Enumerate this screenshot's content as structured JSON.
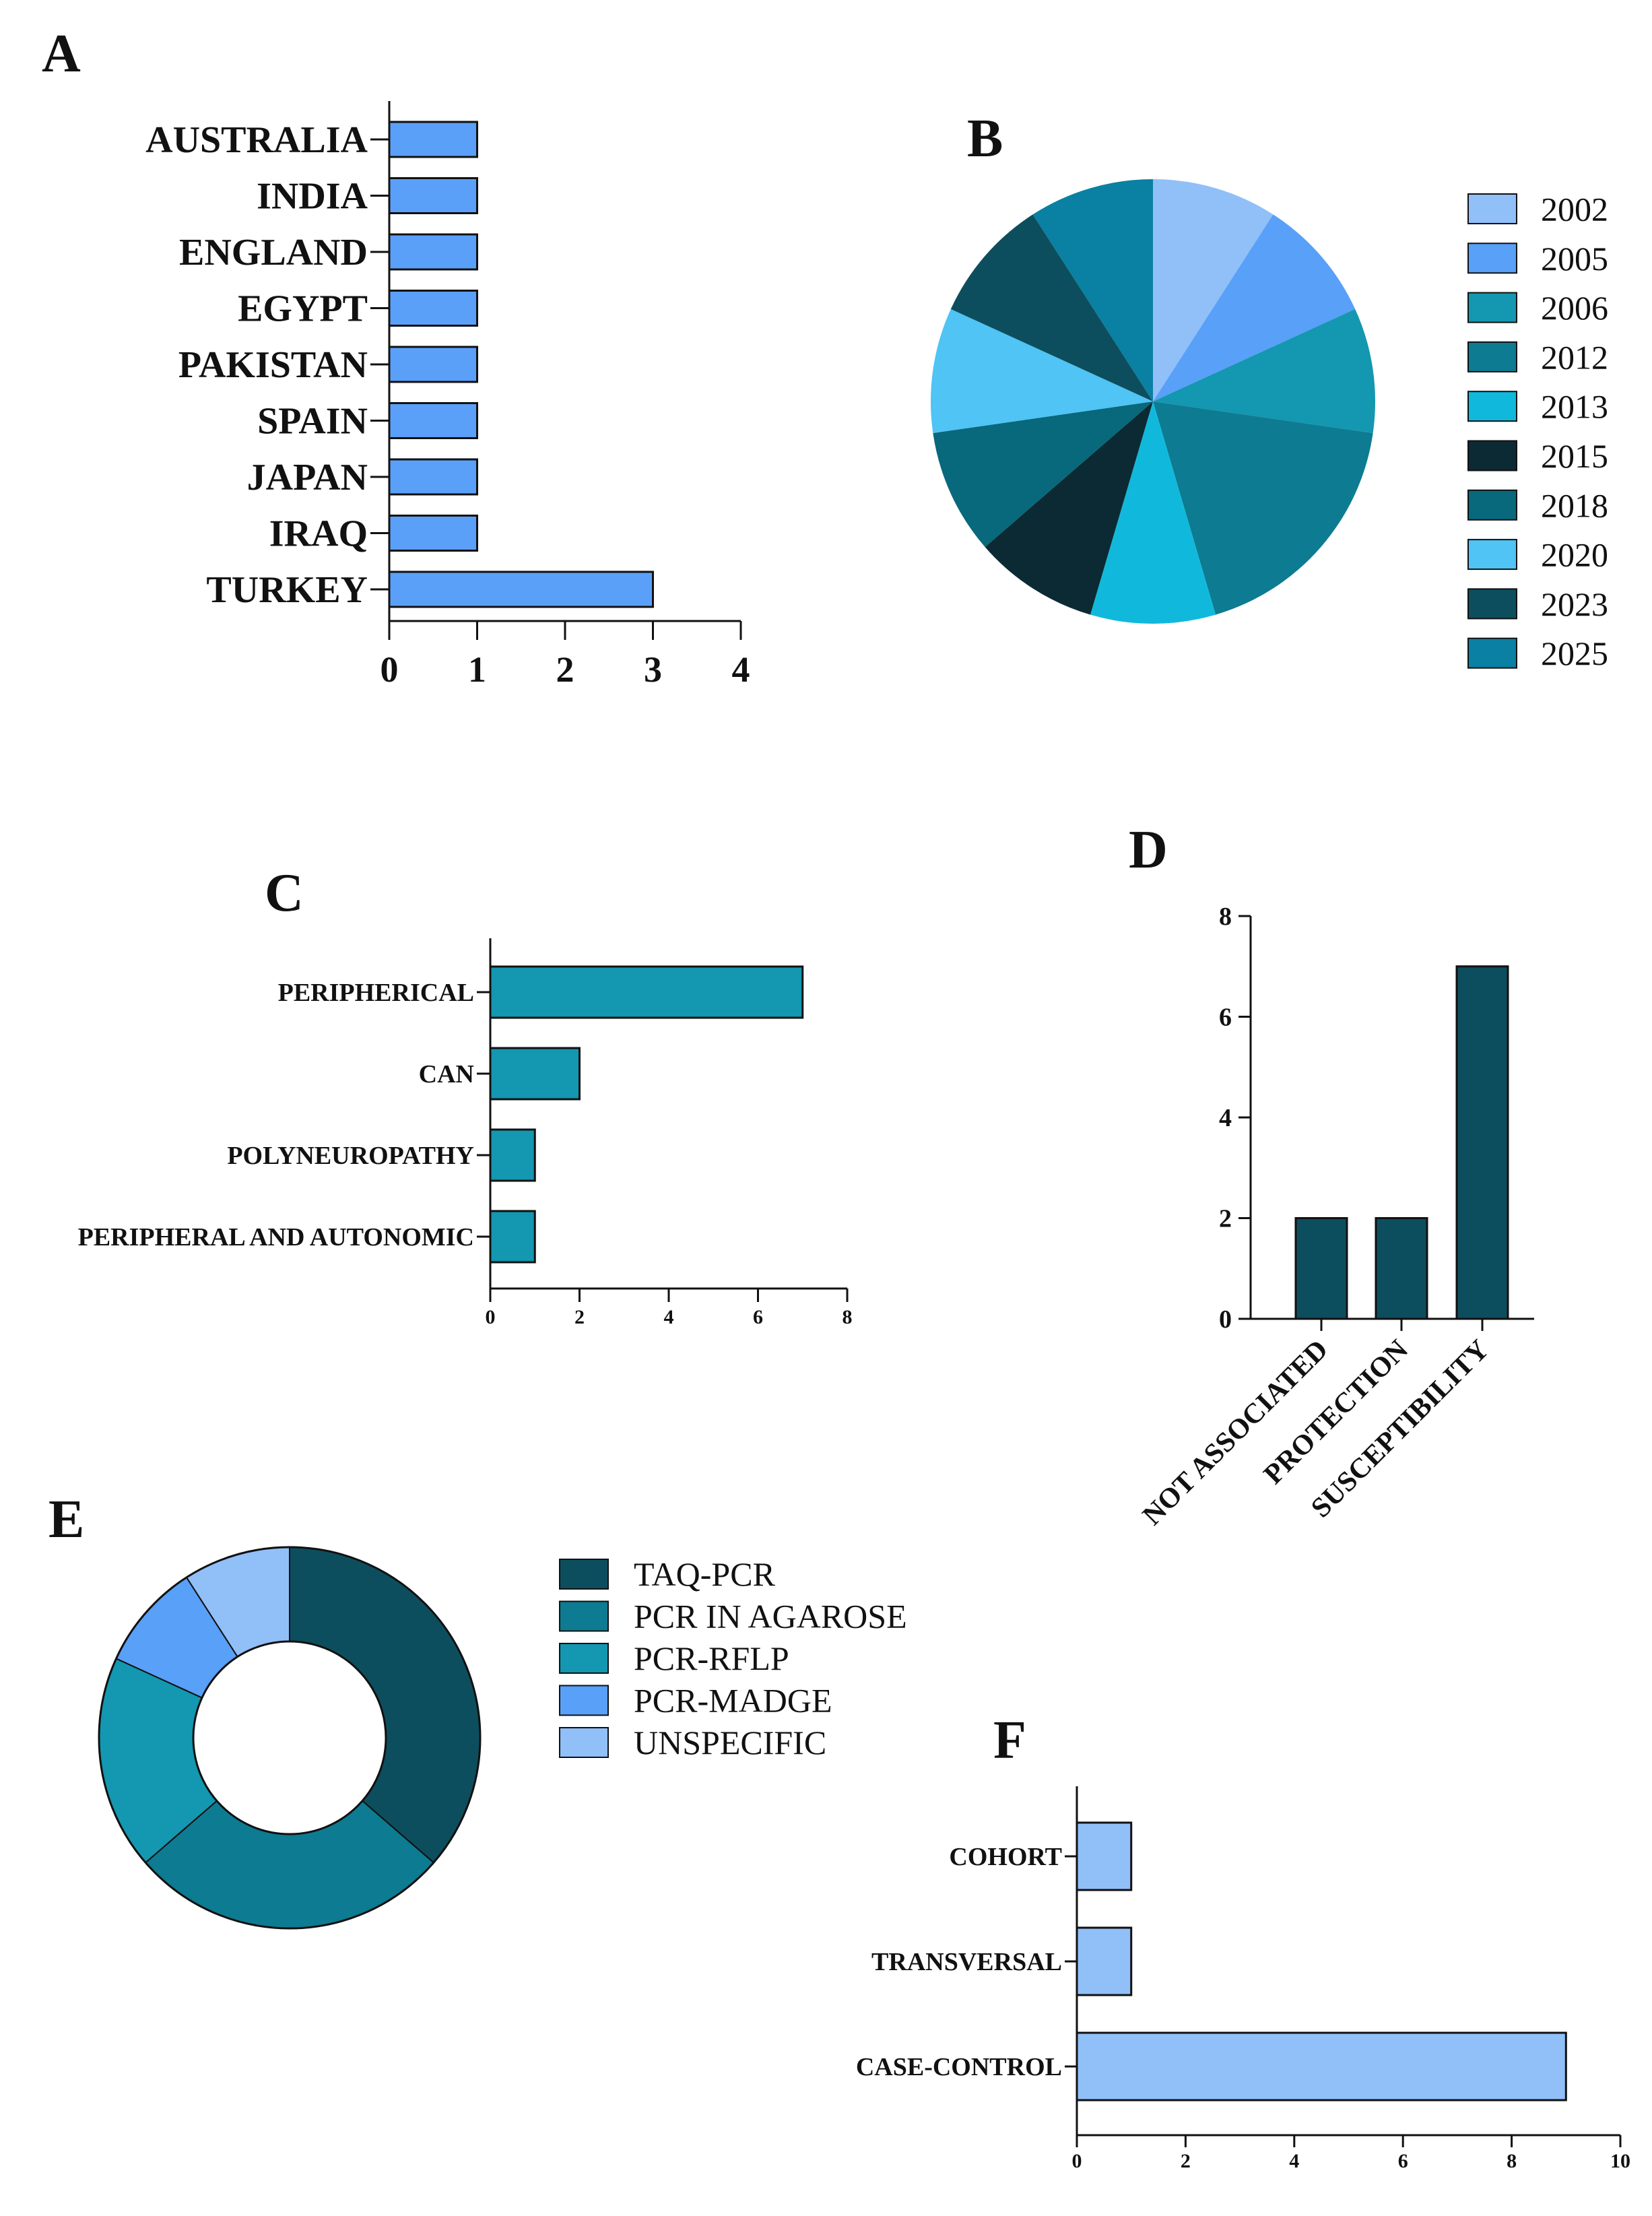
{
  "chart_data": [
    {
      "panel": "A",
      "type": "bar",
      "orientation": "horizontal",
      "categories": [
        "AUSTRALIA",
        "INDIA",
        "ENGLAND",
        "EGYPT",
        "PAKISTAN",
        "SPAIN",
        "JAPAN",
        "IRAQ",
        "TURKEY"
      ],
      "values": [
        1,
        1,
        1,
        1,
        1,
        1,
        1,
        1,
        3
      ],
      "xlim": [
        0,
        4
      ],
      "xticks": [
        0,
        1,
        2,
        3,
        4
      ],
      "color": "#5ba0f8",
      "title": "",
      "xlabel": "",
      "ylabel": "",
      "grid": false
    },
    {
      "panel": "B",
      "type": "pie",
      "labels": [
        "2002",
        "2005",
        "2006",
        "2012",
        "2013",
        "2015",
        "2018",
        "2020",
        "2023",
        "2025"
      ],
      "values": [
        1,
        1,
        1,
        2,
        1,
        1,
        1,
        1,
        1,
        1
      ],
      "colors": [
        "#91bff8",
        "#58a0f8",
        "#1497b0",
        "#0d7b91",
        "#10b9dc",
        "#0c2a33",
        "#08687c",
        "#4fc4f5",
        "#0d4e5e",
        "#0a80a2"
      ],
      "legend": "right"
    },
    {
      "panel": "C",
      "type": "bar",
      "orientation": "horizontal",
      "categories": [
        "PERIPHERICAL",
        "CAN",
        "POLYNEUROPATHY",
        "PERIPHERAL AND AUTONOMIC"
      ],
      "values": [
        7,
        2,
        1,
        1
      ],
      "xlim": [
        0,
        8
      ],
      "xticks": [
        0,
        2,
        4,
        6,
        8
      ],
      "color": "#1497b0",
      "title": "",
      "xlabel": "",
      "ylabel": "",
      "grid": false
    },
    {
      "panel": "D",
      "type": "bar",
      "orientation": "vertical",
      "categories": [
        "NOT ASSOCIATED",
        "PROTECTION",
        "SUSCEPTIBILITY"
      ],
      "values": [
        2,
        2,
        7
      ],
      "ylim": [
        0,
        8
      ],
      "yticks": [
        0,
        2,
        4,
        6,
        8
      ],
      "color": "#0d4e5e",
      "title": "",
      "xlabel": "",
      "ylabel": "",
      "grid": false
    },
    {
      "panel": "E",
      "type": "pie",
      "style": "donut",
      "labels": [
        "TAQ-PCR",
        "PCR IN AGAROSE",
        "PCR-RFLP",
        "PCR-MADGE",
        "UNSPECIFIC"
      ],
      "values": [
        4,
        3,
        2,
        1,
        1
      ],
      "colors": [
        "#0d4e5e",
        "#0d7b91",
        "#1497b0",
        "#58a0f8",
        "#91bff8"
      ],
      "legend": "right"
    },
    {
      "panel": "F",
      "type": "bar",
      "orientation": "horizontal",
      "categories": [
        "COHORT",
        "TRANSVERSAL",
        "CASE-CONTROL"
      ],
      "values": [
        1,
        1,
        9
      ],
      "xlim": [
        0,
        10
      ],
      "xticks": [
        0,
        2,
        4,
        6,
        8,
        10
      ],
      "color": "#91bff8",
      "title": "",
      "xlabel": "",
      "ylabel": "",
      "grid": false
    }
  ]
}
